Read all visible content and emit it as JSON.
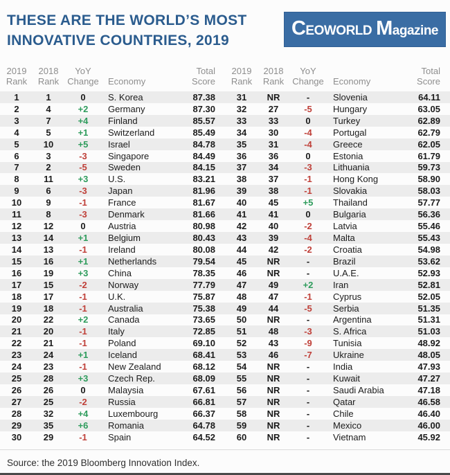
{
  "page": {
    "title_line1": "THESE ARE THE WORLD’S MOST",
    "title_line2": "INNOVATIVE COUNTRIES, 2019",
    "source_note": "Source: the 2019 Bloomberg Innovation Index."
  },
  "logo": {
    "word1": "CEOWORLD",
    "word2": "Magazine"
  },
  "colors": {
    "title_blue": "#2b5c8e",
    "logo_bg": "#3a6da4",
    "positive_green": "#2e9c5c",
    "negative_red": "#bf3f38",
    "stripe_gray": "#ececec",
    "header_gray": "#8e8e8e"
  },
  "columns_display": [
    {
      "name": "col-header-2019-rank",
      "lines": [
        "2019",
        "Rank"
      ]
    },
    {
      "name": "col-header-2018-rank",
      "lines": [
        "2018",
        "Rank"
      ]
    },
    {
      "name": "col-header-yoy-change",
      "lines": [
        "YoY",
        "Change"
      ]
    },
    {
      "name": "col-header-economy",
      "lines": [
        "Economy"
      ]
    },
    {
      "name": "col-header-total-score",
      "lines": [
        "Total",
        "Score"
      ]
    }
  ],
  "chart_data": {
    "type": "table",
    "title": "THESE ARE THE WORLD’S MOST INNOVATIVE COUNTRIES, 2019",
    "columns": [
      "2019 Rank",
      "2018 Rank",
      "YoY Change",
      "Economy",
      "Total Score"
    ],
    "layout": "two side-by-side tables: rows 1-30 left, rows 31-60 right; alternating gray row stripes",
    "source": "Source: the 2019 Bloomberg Innovation Index.",
    "rows": [
      [
        "1",
        "1",
        "0",
        "S. Korea",
        "87.38"
      ],
      [
        "2",
        "4",
        "+2",
        "Germany",
        "87.30"
      ],
      [
        "3",
        "7",
        "+4",
        "Finland",
        "85.57"
      ],
      [
        "4",
        "5",
        "+1",
        "Switzerland",
        "85.49"
      ],
      [
        "5",
        "10",
        "+5",
        "Israel",
        "84.78"
      ],
      [
        "6",
        "3",
        "-3",
        "Singapore",
        "84.49"
      ],
      [
        "7",
        "2",
        "-5",
        "Sweden",
        "84.15"
      ],
      [
        "8",
        "11",
        "+3",
        "U.S.",
        "83.21"
      ],
      [
        "9",
        "6",
        "-3",
        "Japan",
        "81.96"
      ],
      [
        "10",
        "9",
        "-1",
        "France",
        "81.67"
      ],
      [
        "11",
        "8",
        "-3",
        "Denmark",
        "81.66"
      ],
      [
        "12",
        "12",
        "0",
        "Austria",
        "80.98"
      ],
      [
        "13",
        "14",
        "+1",
        "Belgium",
        "80.43"
      ],
      [
        "14",
        "13",
        "-1",
        "Ireland",
        "80.08"
      ],
      [
        "15",
        "16",
        "+1",
        "Netherlands",
        "79.54"
      ],
      [
        "16",
        "19",
        "+3",
        "China",
        "78.35"
      ],
      [
        "17",
        "15",
        "-2",
        "Norway",
        "77.79"
      ],
      [
        "18",
        "17",
        "-1",
        "U.K.",
        "75.87"
      ],
      [
        "19",
        "18",
        "-1",
        "Australia",
        "75.38"
      ],
      [
        "20",
        "22",
        "+2",
        "Canada",
        "73.65"
      ],
      [
        "21",
        "20",
        "-1",
        "Italy",
        "72.85"
      ],
      [
        "22",
        "21",
        "-1",
        "Poland",
        "69.10"
      ],
      [
        "23",
        "24",
        "+1",
        "Iceland",
        "68.41"
      ],
      [
        "24",
        "23",
        "-1",
        "New Zealand",
        "68.12"
      ],
      [
        "25",
        "28",
        "+3",
        "Czech Rep.",
        "68.09"
      ],
      [
        "26",
        "26",
        "0",
        "Malaysia",
        "67.61"
      ],
      [
        "27",
        "25",
        "-2",
        "Russia",
        "66.81"
      ],
      [
        "28",
        "32",
        "+4",
        "Luxembourg",
        "66.37"
      ],
      [
        "29",
        "35",
        "+6",
        "Romania",
        "64.78"
      ],
      [
        "30",
        "29",
        "-1",
        "Spain",
        "64.52"
      ],
      [
        "31",
        "NR",
        "-",
        "Slovenia",
        "64.11"
      ],
      [
        "32",
        "27",
        "-5",
        "Hungary",
        "63.05"
      ],
      [
        "33",
        "33",
        "0",
        "Turkey",
        "62.89"
      ],
      [
        "34",
        "30",
        "-4",
        "Portugal",
        "62.79"
      ],
      [
        "35",
        "31",
        "-4",
        "Greece",
        "62.05"
      ],
      [
        "36",
        "36",
        "0",
        "Estonia",
        "61.79"
      ],
      [
        "37",
        "34",
        "-3",
        "Lithuania",
        "59.73"
      ],
      [
        "38",
        "37",
        "-1",
        "Hong Kong",
        "58.90"
      ],
      [
        "39",
        "38",
        "-1",
        "Slovakia",
        "58.03"
      ],
      [
        "40",
        "45",
        "+5",
        "Thailand",
        "57.77"
      ],
      [
        "41",
        "41",
        "0",
        "Bulgaria",
        "56.36"
      ],
      [
        "42",
        "40",
        "-2",
        "Latvia",
        "55.46"
      ],
      [
        "43",
        "39",
        "-4",
        "Malta",
        "55.43"
      ],
      [
        "44",
        "42",
        "-2",
        "Croatia",
        "54.98"
      ],
      [
        "45",
        "NR",
        "-",
        "Brazil",
        "53.62"
      ],
      [
        "46",
        "NR",
        "-",
        "U.A.E.",
        "52.93"
      ],
      [
        "47",
        "49",
        "+2",
        "Iran",
        "52.81"
      ],
      [
        "48",
        "47",
        "-1",
        "Cyprus",
        "52.05"
      ],
      [
        "49",
        "44",
        "-5",
        "Serbia",
        "51.35"
      ],
      [
        "50",
        "NR",
        "-",
        "Argentina",
        "51.31"
      ],
      [
        "51",
        "48",
        "-3",
        "S. Africa",
        "51.03"
      ],
      [
        "52",
        "43",
        "-9",
        "Tunisia",
        "48.92"
      ],
      [
        "53",
        "46",
        "-7",
        "Ukraine",
        "48.05"
      ],
      [
        "54",
        "NR",
        "-",
        "India",
        "47.93"
      ],
      [
        "55",
        "NR",
        "-",
        "Kuwait",
        "47.27"
      ],
      [
        "56",
        "NR",
        "-",
        "Saudi Arabia",
        "47.18"
      ],
      [
        "57",
        "NR",
        "-",
        "Qatar",
        "46.58"
      ],
      [
        "58",
        "NR",
        "-",
        "Chile",
        "46.40"
      ],
      [
        "59",
        "NR",
        "-",
        "Mexico",
        "46.00"
      ],
      [
        "60",
        "NR",
        "-",
        "Vietnam",
        "45.92"
      ]
    ]
  }
}
